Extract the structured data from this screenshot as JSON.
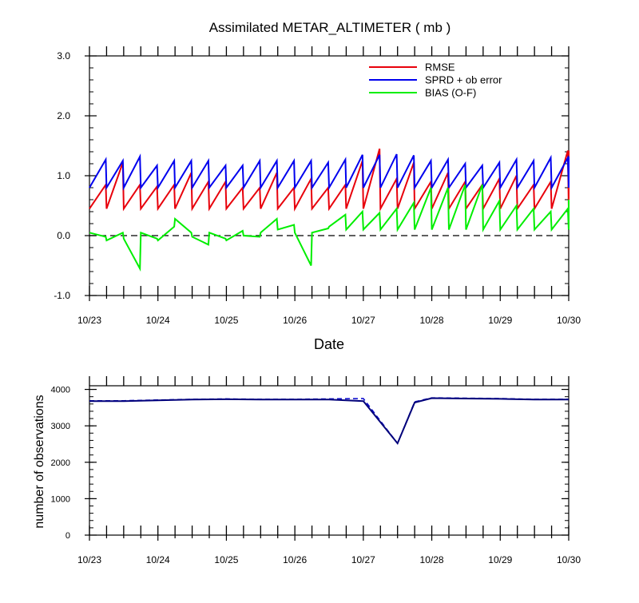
{
  "title": "Assimilated METAR_ALTIMETER ( mb )",
  "x_tick_labels": [
    "10/23",
    "10/24",
    "10/25",
    "10/26",
    "10/27",
    "10/28",
    "10/29",
    "10/30"
  ],
  "chart_data": [
    {
      "type": "line",
      "title": "Assimilated METAR_ALTIMETER ( mb )",
      "xlabel": "Date",
      "ylabel": "",
      "x_range": [
        "10/23",
        "10/30"
      ],
      "ylim": [
        -1.0,
        3.0
      ],
      "y_ticks": [
        "3.0",
        "2.0",
        "1.0",
        "0.0",
        "-1.0"
      ],
      "legend_position": "top-right",
      "zero_line": "dashed",
      "colors": {
        "RMSE": "#e8000b",
        "SPRD": "#0000ee",
        "BIAS": "#00ee00"
      },
      "time_step_days": 0.25,
      "sawtooth_note": "each cycle plots prior (forecast) then posterior (analysis) value",
      "series": [
        {
          "name": "RMSE",
          "color": "#e8000b",
          "values": [
            0.45,
            0.85,
            0.45,
            1.22,
            0.45,
            0.85,
            0.45,
            0.82,
            0.45,
            0.85,
            0.45,
            1.05,
            0.45,
            0.9,
            0.45,
            0.9,
            0.45,
            0.8,
            0.45,
            0.8,
            0.45,
            1.05,
            0.45,
            0.8,
            0.45,
            0.95,
            0.45,
            0.8,
            0.45,
            0.85,
            0.45,
            1.25,
            0.45,
            1.45,
            0.45,
            0.95,
            0.45,
            1.22,
            0.45,
            0.9,
            0.45,
            1.05,
            0.45,
            0.9,
            0.45,
            0.85,
            0.45,
            0.95,
            0.45,
            1.0,
            0.45,
            0.85,
            0.45,
            0.9,
            0.45,
            1.42,
            0.45,
            1.42
          ]
        },
        {
          "name": "SPRD + ob error",
          "color": "#0000ee",
          "values": [
            0.8,
            1.27,
            0.8,
            1.25,
            0.8,
            1.32,
            0.8,
            1.17,
            0.8,
            1.25,
            0.8,
            1.25,
            0.8,
            1.25,
            0.8,
            1.17,
            0.8,
            1.17,
            0.8,
            1.25,
            0.8,
            1.25,
            0.8,
            1.25,
            0.8,
            1.25,
            0.8,
            1.22,
            0.8,
            1.27,
            0.8,
            1.35,
            0.8,
            1.35,
            0.8,
            1.36,
            0.8,
            1.34,
            0.8,
            1.25,
            0.8,
            1.27,
            0.8,
            1.2,
            0.8,
            1.17,
            0.8,
            1.22,
            0.8,
            1.27,
            0.8,
            1.25,
            0.8,
            1.3,
            0.8,
            1.3,
            0.8,
            1.32
          ]
        },
        {
          "name": "BIAS (O-F)",
          "color": "#00ee00",
          "values": [
            0.05,
            -0.02,
            -0.08,
            0.05,
            -0.05,
            -0.55,
            0.05,
            -0.05,
            -0.08,
            0.15,
            0.28,
            0.05,
            -0.02,
            -0.15,
            0.05,
            -0.05,
            -0.08,
            0.08,
            0.0,
            -0.02,
            0.05,
            0.28,
            0.1,
            0.18,
            0.05,
            -0.5,
            0.05,
            0.12,
            0.15,
            0.35,
            0.1,
            0.4,
            0.1,
            0.38,
            0.1,
            0.45,
            0.1,
            0.55,
            0.1,
            0.8,
            0.1,
            0.8,
            0.1,
            0.85,
            0.1,
            0.85,
            0.1,
            0.58,
            0.1,
            0.5,
            0.1,
            0.45,
            0.1,
            0.4,
            0.1,
            0.45,
            0.1,
            0.6
          ]
        }
      ]
    },
    {
      "type": "line",
      "title": "",
      "xlabel": "",
      "ylabel": "number of observations",
      "x_range": [
        "10/23",
        "10/30"
      ],
      "ylim": [
        0,
        4100
      ],
      "y_ticks": [
        "4000",
        "3000",
        "2000",
        "1000",
        "0"
      ],
      "series_style": {
        "posterior": "solid",
        "prior": "dashed"
      },
      "colors": {
        "posterior": "#00007a",
        "prior": "#0000cc"
      },
      "x_days": [
        0,
        0.5,
        1,
        1.5,
        2,
        2.5,
        3,
        3.5,
        4,
        4.5,
        4.75,
        5,
        5.5,
        6,
        6.5,
        7
      ],
      "obs_posterior": [
        3680,
        3680,
        3700,
        3720,
        3730,
        3720,
        3720,
        3720,
        3680,
        2520,
        3640,
        3760,
        3750,
        3740,
        3720,
        3720
      ],
      "obs_prior": [
        3690,
        3690,
        3710,
        3730,
        3740,
        3730,
        3730,
        3740,
        3750,
        2520,
        3660,
        3770,
        3760,
        3750,
        3730,
        3730
      ]
    }
  ]
}
